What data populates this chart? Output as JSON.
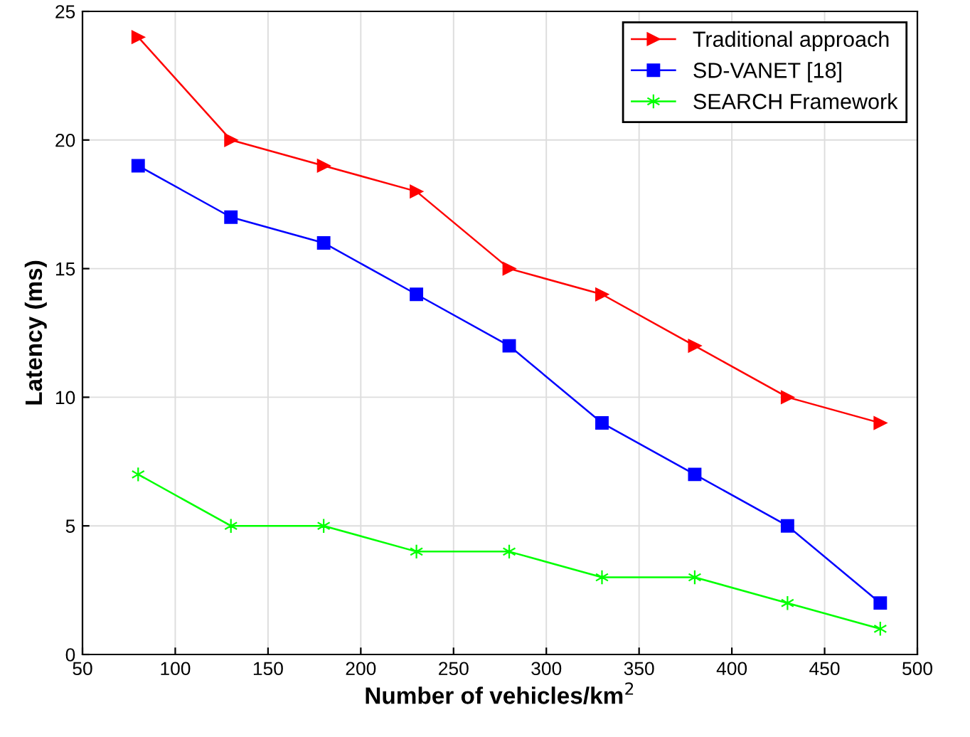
{
  "chart_data": {
    "type": "line",
    "xlabel": "Number of vehicles/km$^{2}$",
    "ylabel": "Latency (ms)",
    "x": [
      80,
      130,
      180,
      230,
      280,
      330,
      380,
      430,
      480
    ],
    "series": [
      {
        "name": "Traditional approach",
        "color": "#ff0000",
        "marker": "triangle",
        "values": [
          24,
          20,
          19,
          18,
          15,
          14,
          12,
          10,
          9
        ]
      },
      {
        "name": "SD-VANET [18]",
        "color": "#0000ff",
        "marker": "square",
        "values": [
          19,
          17,
          16,
          14,
          12,
          9,
          7,
          5,
          2
        ]
      },
      {
        "name": "SEARCH Framework",
        "color": "#00ff00",
        "marker": "cross",
        "values": [
          7,
          5,
          5,
          4,
          4,
          3,
          3,
          2,
          1
        ]
      }
    ],
    "xlim": [
      50,
      500
    ],
    "xticks": [
      50,
      100,
      150,
      200,
      250,
      300,
      350,
      400,
      450,
      500
    ],
    "ylim": [
      0,
      25
    ],
    "yticks": [
      0,
      5,
      10,
      15,
      20,
      25
    ],
    "grid": true,
    "legend": "top right",
    "line_style": "solid"
  }
}
